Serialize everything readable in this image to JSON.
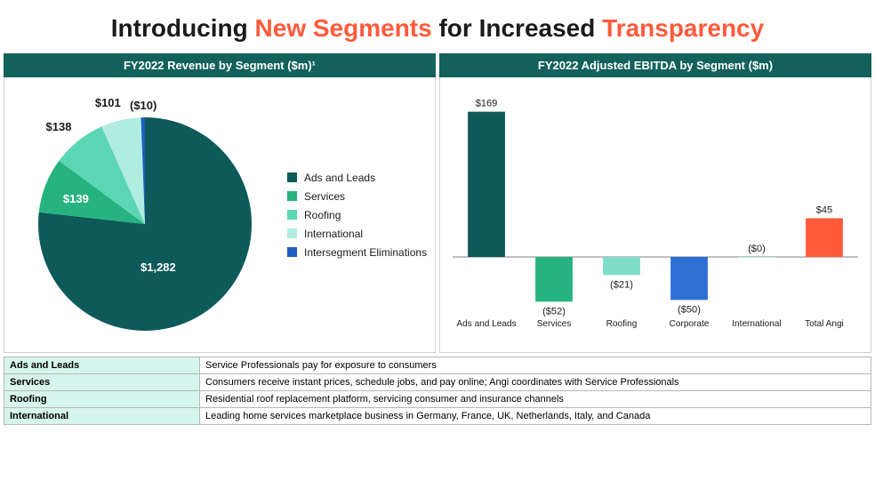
{
  "title_parts": {
    "p1": "Introducing ",
    "accent1": "New Segments",
    "p2": " for Increased ",
    "accent2": "Transparency"
  },
  "pie_chart": {
    "header": "FY2022 Revenue by Segment ($m)¹",
    "type": "pie",
    "background_color": "#ffffff",
    "slices": [
      {
        "label": "Ads and Leads",
        "value": 1282,
        "display": "$1,282",
        "color": "#0e5a5a",
        "label_inside": true
      },
      {
        "label": "Services",
        "value": 139,
        "display": "$139",
        "color": "#26b37f",
        "label_inside": true
      },
      {
        "label": "Roofing",
        "value": 138,
        "display": "$138",
        "color": "#5cd6b2",
        "label_inside": false
      },
      {
        "label": "International",
        "value": 101,
        "display": "$101",
        "color": "#b0ede0",
        "label_inside": false
      },
      {
        "label": "Intersegment Eliminations",
        "value": 10,
        "display": "($10)",
        "color": "#1f5fc4",
        "label_inside": false
      }
    ],
    "legend_items": [
      {
        "label": "Ads and Leads",
        "color": "#0e5a5a"
      },
      {
        "label": "Services",
        "color": "#26b37f"
      },
      {
        "label": "Roofing",
        "color": "#5cd6b2"
      },
      {
        "label": "International",
        "color": "#b0ede0"
      },
      {
        "label": "Intersegment Eliminations",
        "color": "#1f5fc4"
      }
    ]
  },
  "bar_chart": {
    "header": "FY2022 Adjusted EBITDA by Segment ($m)",
    "type": "bar",
    "background_color": "#ffffff",
    "y_min": -60,
    "y_max": 180,
    "bar_width_ratio": 0.55,
    "bars": [
      {
        "category": "Ads and Leads",
        "value": 169,
        "display": "$169",
        "color": "#0e5a5a"
      },
      {
        "category": "Services",
        "value": -52,
        "display": "($52)",
        "color": "#26b37f"
      },
      {
        "category": "Roofing",
        "value": -21,
        "display": "($21)",
        "color": "#7eddc6"
      },
      {
        "category": "Corporate",
        "value": -50,
        "display": "($50)",
        "color": "#2e6fd6"
      },
      {
        "category": "International",
        "value": 0,
        "display": "($0)",
        "color": "#b0ede0"
      },
      {
        "category": "Total Angi",
        "value": 45,
        "display": "$45",
        "color": "#ff5a3c"
      }
    ]
  },
  "table_rows": [
    {
      "segment": "Ads and Leads",
      "desc": "Service Professionals pay for exposure to consumers"
    },
    {
      "segment": "Services",
      "desc": "Consumers receive instant prices, schedule jobs, and pay online; Angi coordinates with Service Professionals"
    },
    {
      "segment": "Roofing",
      "desc": "Residential roof replacement platform, servicing consumer and insurance channels"
    },
    {
      "segment": "International",
      "desc": "Leading home services marketplace business in Germany, France, UK, Netherlands, Italy, and Canada"
    }
  ]
}
